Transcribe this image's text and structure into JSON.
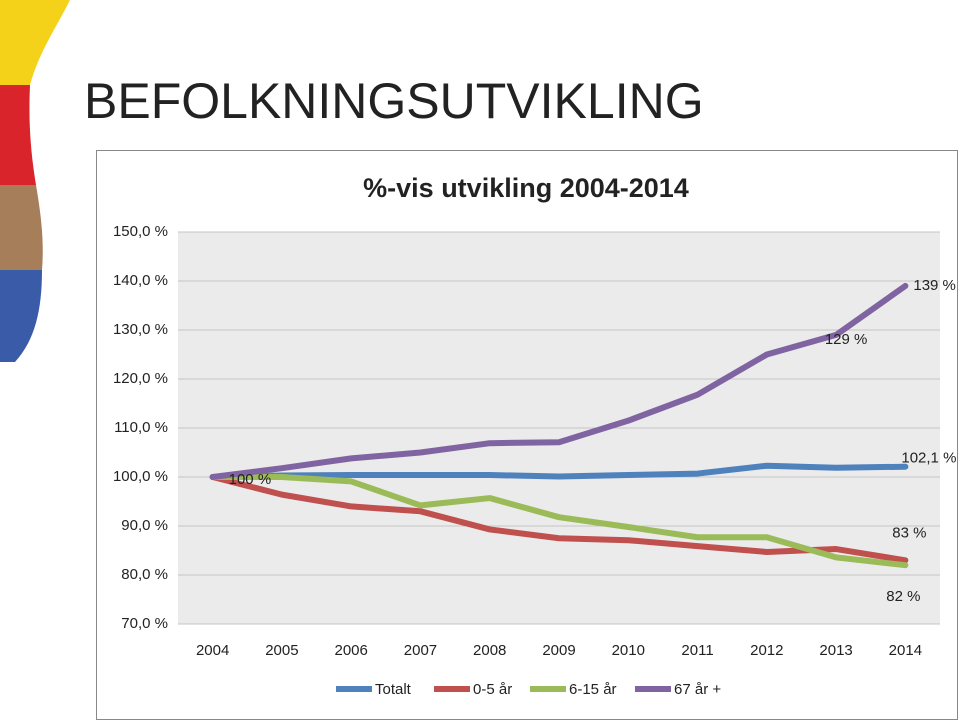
{
  "slide_title": "BEFOLKNINGSUTVIKLING",
  "chart_data": {
    "type": "line",
    "title": "%-vis utvikling 2004-2014",
    "categories": [
      "2004",
      "2005",
      "2006",
      "2007",
      "2008",
      "2009",
      "2010",
      "2011",
      "2012",
      "2013",
      "2014"
    ],
    "series": [
      {
        "name": "Totalt",
        "color": "#4f81bd",
        "values": [
          100,
          100.3,
          100.4,
          100.4,
          100.4,
          100.1,
          100.4,
          100.7,
          102.3,
          101.9,
          102.1
        ],
        "value_labels": [
          "100 %",
          null,
          null,
          null,
          null,
          null,
          null,
          null,
          null,
          null,
          "102,1 %"
        ]
      },
      {
        "name": "0-5 år",
        "color": "#c0504d",
        "values": [
          100,
          96.4,
          94.0,
          93.0,
          89.3,
          87.5,
          87.1,
          85.9,
          84.7,
          85.3,
          83
        ],
        "value_labels": [
          null,
          null,
          null,
          null,
          null,
          null,
          null,
          null,
          null,
          null,
          "83 %"
        ]
      },
      {
        "name": "6-15 år",
        "color": "#9bbb59",
        "values": [
          100,
          100,
          99.1,
          94.2,
          95.7,
          91.8,
          89.8,
          87.7,
          87.7,
          83.6,
          82
        ],
        "value_labels": [
          null,
          null,
          null,
          null,
          null,
          null,
          null,
          null,
          null,
          null,
          "82 %"
        ]
      },
      {
        "name": "67 år +",
        "color": "#8064a2",
        "values": [
          100,
          101.8,
          103.8,
          105.0,
          106.9,
          107.1,
          111.5,
          116.8,
          125.0,
          129,
          139
        ],
        "value_labels": [
          null,
          null,
          null,
          null,
          null,
          null,
          null,
          null,
          null,
          "129 %",
          "139 %"
        ]
      }
    ],
    "ylim": [
      70,
      150
    ],
    "yticks": [
      {
        "value": 70,
        "label": "70,0 %"
      },
      {
        "value": 80,
        "label": "80,0 %"
      },
      {
        "value": 90,
        "label": "90,0 %"
      },
      {
        "value": 100,
        "label": "100,0 %"
      },
      {
        "value": 110,
        "label": "110,0 %"
      },
      {
        "value": 120,
        "label": "120,0 %"
      },
      {
        "value": 130,
        "label": "130,0 %"
      },
      {
        "value": 140,
        "label": "140,0 %"
      },
      {
        "value": 150,
        "label": "150,0 %"
      }
    ],
    "grid": true,
    "legend": "bottom"
  }
}
